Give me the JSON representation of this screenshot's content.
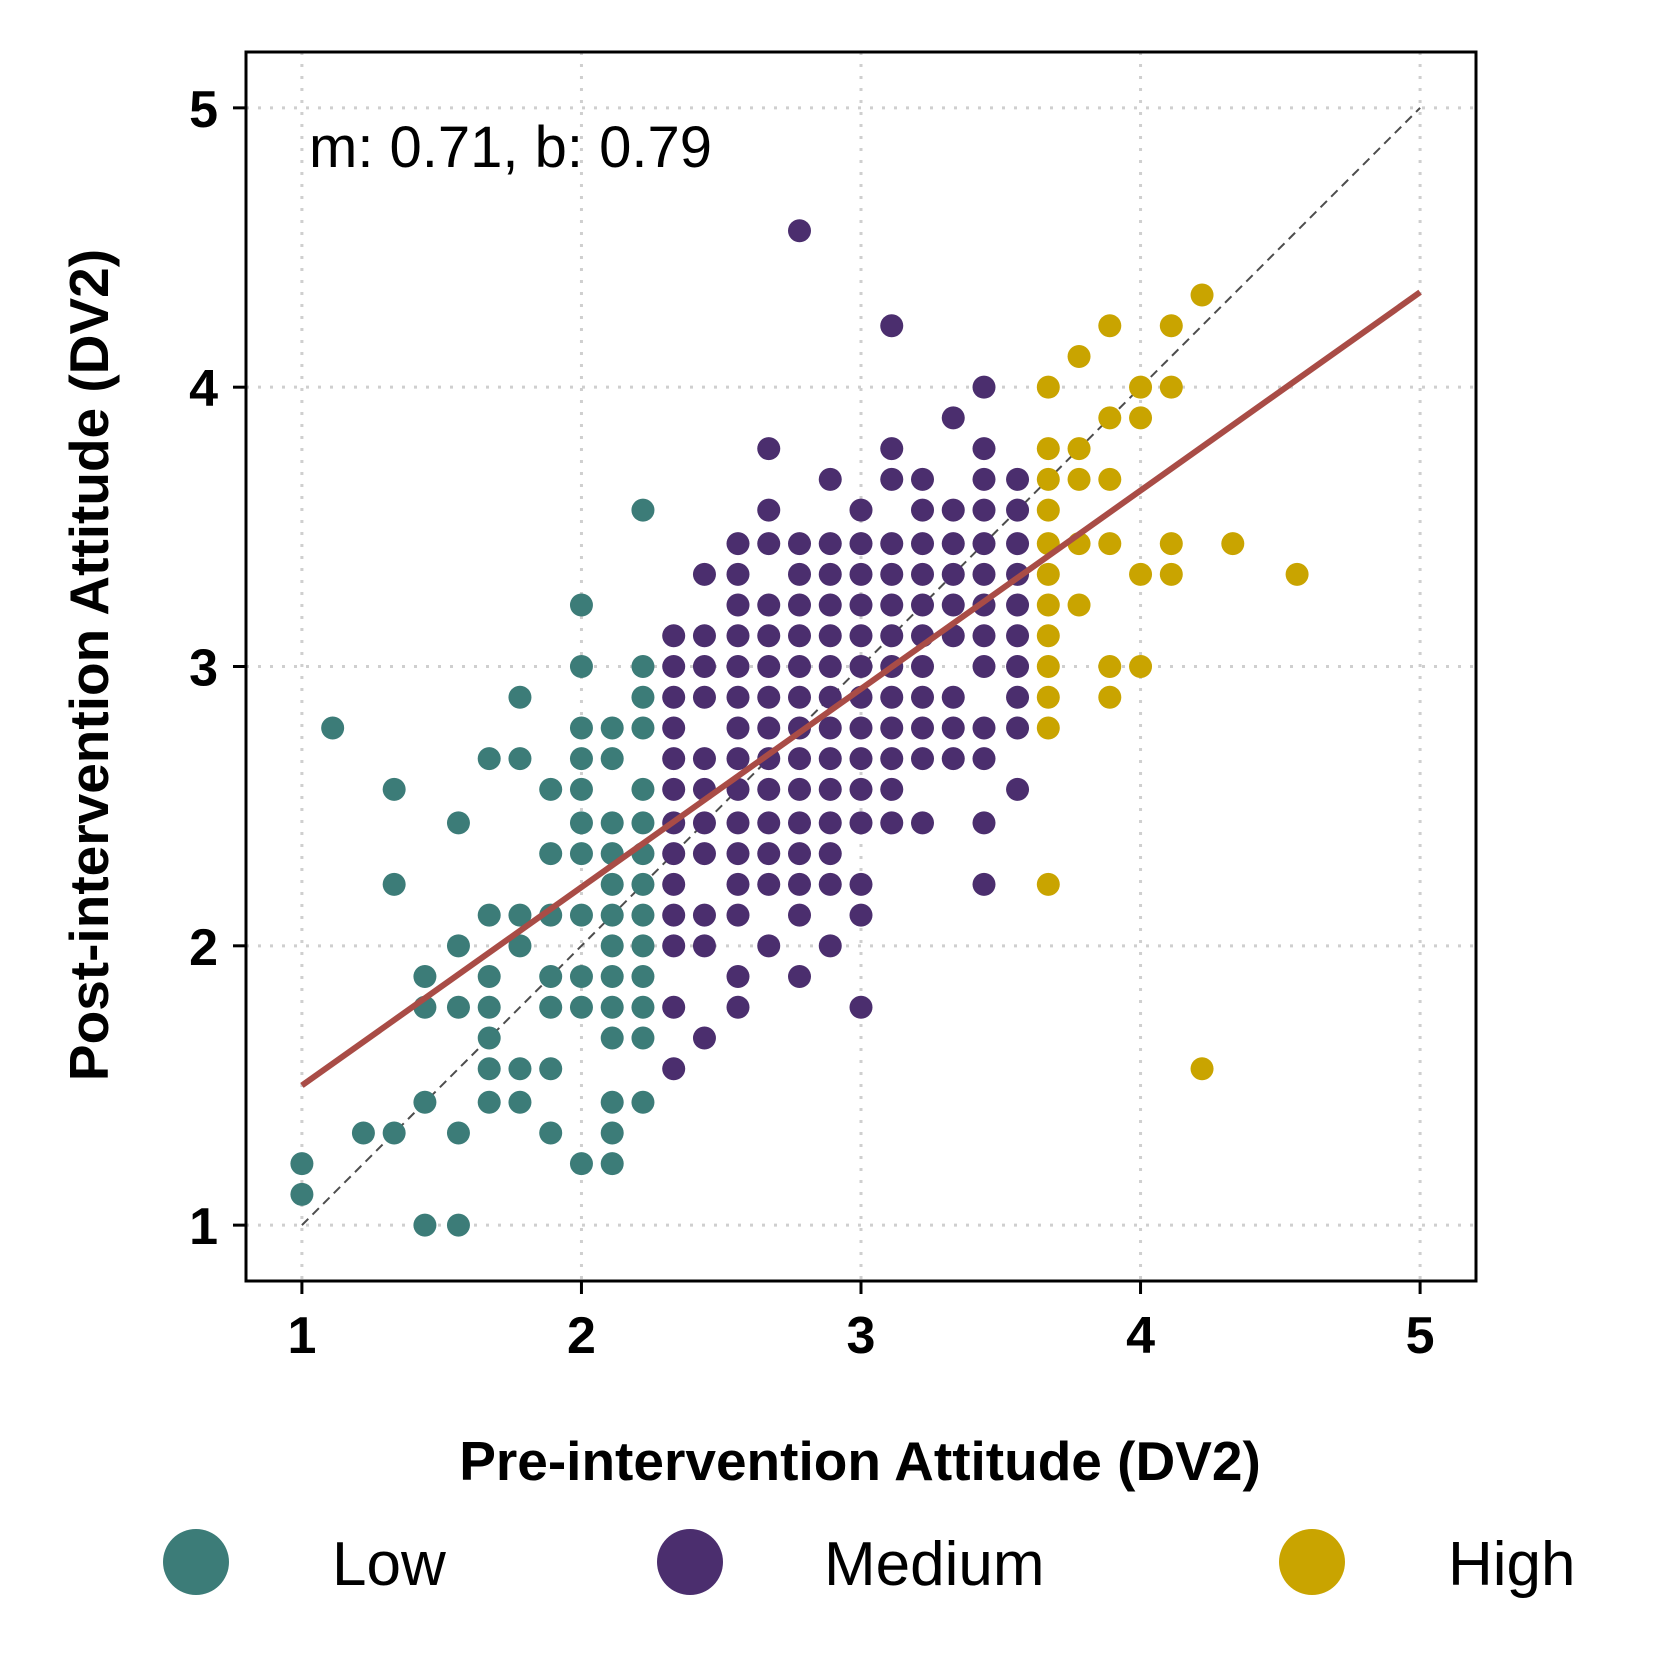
{
  "chart_data": {
    "type": "scatter",
    "title": "",
    "xlabel": "Pre-intervention Attitude (DV2)",
    "ylabel": "Post-intervention Attitude (DV2)",
    "xlim": [
      0.8,
      5.2
    ],
    "ylim": [
      0.8,
      5.2
    ],
    "xticks": [
      1,
      2,
      3,
      4,
      5
    ],
    "yticks": [
      1,
      2,
      3,
      4,
      5
    ],
    "grid": true,
    "annotation": "m: 0.71, b: 0.79",
    "fit_line": {
      "slope": 0.71,
      "intercept": 0.79,
      "x_range": [
        1,
        5
      ],
      "color": "#a94c46"
    },
    "identity_line": {
      "x_range": [
        1,
        5
      ],
      "color": "#4d4d4d"
    },
    "legend_position": "bottom",
    "series": [
      {
        "name": "Low",
        "color": "#3c7c78",
        "points": [
          [
            1.0,
            1.22
          ],
          [
            1.0,
            1.11
          ],
          [
            1.11,
            2.78
          ],
          [
            1.22,
            1.33
          ],
          [
            1.33,
            1.33
          ],
          [
            1.33,
            2.22
          ],
          [
            1.33,
            2.56
          ],
          [
            1.44,
            1.0
          ],
          [
            1.44,
            1.44
          ],
          [
            1.44,
            1.78
          ],
          [
            1.44,
            1.89
          ],
          [
            1.56,
            1.0
          ],
          [
            1.56,
            1.33
          ],
          [
            1.56,
            1.78
          ],
          [
            1.56,
            2.0
          ],
          [
            1.56,
            2.44
          ],
          [
            1.67,
            1.44
          ],
          [
            1.67,
            1.56
          ],
          [
            1.67,
            1.67
          ],
          [
            1.67,
            1.78
          ],
          [
            1.67,
            1.89
          ],
          [
            1.67,
            2.11
          ],
          [
            1.67,
            2.67
          ],
          [
            1.78,
            1.44
          ],
          [
            1.78,
            1.56
          ],
          [
            1.78,
            2.0
          ],
          [
            1.78,
            2.11
          ],
          [
            1.78,
            2.67
          ],
          [
            1.78,
            2.89
          ],
          [
            1.89,
            1.33
          ],
          [
            1.89,
            1.56
          ],
          [
            1.89,
            1.78
          ],
          [
            1.89,
            1.89
          ],
          [
            1.89,
            2.11
          ],
          [
            1.89,
            2.33
          ],
          [
            1.89,
            2.56
          ],
          [
            2.0,
            1.22
          ],
          [
            2.0,
            1.78
          ],
          [
            2.0,
            1.89
          ],
          [
            2.0,
            2.11
          ],
          [
            2.0,
            2.33
          ],
          [
            2.0,
            2.44
          ],
          [
            2.0,
            2.56
          ],
          [
            2.0,
            2.67
          ],
          [
            2.0,
            2.78
          ],
          [
            2.0,
            3.0
          ],
          [
            2.0,
            3.22
          ],
          [
            2.11,
            1.22
          ],
          [
            2.11,
            1.33
          ],
          [
            2.11,
            1.44
          ],
          [
            2.11,
            1.67
          ],
          [
            2.11,
            1.78
          ],
          [
            2.11,
            1.89
          ],
          [
            2.11,
            2.0
          ],
          [
            2.11,
            2.11
          ],
          [
            2.11,
            2.22
          ],
          [
            2.11,
            2.33
          ],
          [
            2.11,
            2.44
          ],
          [
            2.11,
            2.67
          ],
          [
            2.11,
            2.78
          ],
          [
            2.22,
            1.44
          ],
          [
            2.22,
            1.67
          ],
          [
            2.22,
            1.78
          ],
          [
            2.22,
            1.89
          ],
          [
            2.22,
            2.0
          ],
          [
            2.22,
            2.11
          ],
          [
            2.22,
            2.22
          ],
          [
            2.22,
            2.33
          ],
          [
            2.22,
            2.44
          ],
          [
            2.22,
            2.56
          ],
          [
            2.22,
            2.78
          ],
          [
            2.22,
            2.89
          ],
          [
            2.22,
            3.0
          ],
          [
            2.22,
            3.56
          ]
        ]
      },
      {
        "name": "Medium",
        "color": "#4b2e6e",
        "points": [
          [
            2.33,
            1.56
          ],
          [
            2.33,
            1.78
          ],
          [
            2.33,
            2.0
          ],
          [
            2.33,
            2.11
          ],
          [
            2.33,
            2.22
          ],
          [
            2.33,
            2.33
          ],
          [
            2.33,
            2.44
          ],
          [
            2.33,
            2.56
          ],
          [
            2.33,
            2.67
          ],
          [
            2.33,
            2.78
          ],
          [
            2.33,
            2.89
          ],
          [
            2.33,
            3.0
          ],
          [
            2.33,
            3.11
          ],
          [
            2.44,
            1.67
          ],
          [
            2.44,
            2.0
          ],
          [
            2.44,
            2.11
          ],
          [
            2.44,
            2.33
          ],
          [
            2.44,
            2.44
          ],
          [
            2.44,
            2.56
          ],
          [
            2.44,
            2.67
          ],
          [
            2.44,
            2.89
          ],
          [
            2.44,
            3.0
          ],
          [
            2.44,
            3.11
          ],
          [
            2.44,
            3.33
          ],
          [
            2.56,
            1.78
          ],
          [
            2.56,
            1.89
          ],
          [
            2.56,
            2.11
          ],
          [
            2.56,
            2.22
          ],
          [
            2.56,
            2.33
          ],
          [
            2.56,
            2.44
          ],
          [
            2.56,
            2.56
          ],
          [
            2.56,
            2.67
          ],
          [
            2.56,
            2.78
          ],
          [
            2.56,
            2.89
          ],
          [
            2.56,
            3.0
          ],
          [
            2.56,
            3.11
          ],
          [
            2.56,
            3.22
          ],
          [
            2.56,
            3.33
          ],
          [
            2.56,
            3.44
          ],
          [
            2.67,
            2.0
          ],
          [
            2.67,
            2.22
          ],
          [
            2.67,
            2.33
          ],
          [
            2.67,
            2.44
          ],
          [
            2.67,
            2.56
          ],
          [
            2.67,
            2.67
          ],
          [
            2.67,
            2.78
          ],
          [
            2.67,
            2.89
          ],
          [
            2.67,
            3.0
          ],
          [
            2.67,
            3.11
          ],
          [
            2.67,
            3.22
          ],
          [
            2.67,
            3.44
          ],
          [
            2.67,
            3.56
          ],
          [
            2.67,
            3.78
          ],
          [
            2.78,
            1.89
          ],
          [
            2.78,
            2.11
          ],
          [
            2.78,
            2.22
          ],
          [
            2.78,
            2.33
          ],
          [
            2.78,
            2.44
          ],
          [
            2.78,
            2.56
          ],
          [
            2.78,
            2.67
          ],
          [
            2.78,
            2.78
          ],
          [
            2.78,
            2.89
          ],
          [
            2.78,
            3.0
          ],
          [
            2.78,
            3.11
          ],
          [
            2.78,
            3.22
          ],
          [
            2.78,
            3.33
          ],
          [
            2.78,
            3.44
          ],
          [
            2.78,
            4.56
          ],
          [
            2.89,
            2.0
          ],
          [
            2.89,
            2.22
          ],
          [
            2.89,
            2.33
          ],
          [
            2.89,
            2.44
          ],
          [
            2.89,
            2.56
          ],
          [
            2.89,
            2.67
          ],
          [
            2.89,
            2.78
          ],
          [
            2.89,
            2.89
          ],
          [
            2.89,
            3.0
          ],
          [
            2.89,
            3.11
          ],
          [
            2.89,
            3.22
          ],
          [
            2.89,
            3.33
          ],
          [
            2.89,
            3.44
          ],
          [
            2.89,
            3.67
          ],
          [
            3.0,
            1.78
          ],
          [
            3.0,
            2.11
          ],
          [
            3.0,
            2.22
          ],
          [
            3.0,
            2.44
          ],
          [
            3.0,
            2.56
          ],
          [
            3.0,
            2.67
          ],
          [
            3.0,
            2.78
          ],
          [
            3.0,
            2.89
          ],
          [
            3.0,
            3.0
          ],
          [
            3.0,
            3.11
          ],
          [
            3.0,
            3.22
          ],
          [
            3.0,
            3.33
          ],
          [
            3.0,
            3.44
          ],
          [
            3.0,
            3.56
          ],
          [
            3.11,
            2.44
          ],
          [
            3.11,
            2.56
          ],
          [
            3.11,
            2.67
          ],
          [
            3.11,
            2.78
          ],
          [
            3.11,
            2.89
          ],
          [
            3.11,
            3.0
          ],
          [
            3.11,
            3.11
          ],
          [
            3.11,
            3.22
          ],
          [
            3.11,
            3.33
          ],
          [
            3.11,
            3.44
          ],
          [
            3.11,
            3.67
          ],
          [
            3.11,
            3.78
          ],
          [
            3.11,
            4.22
          ],
          [
            3.22,
            2.44
          ],
          [
            3.22,
            2.67
          ],
          [
            3.22,
            2.78
          ],
          [
            3.22,
            2.89
          ],
          [
            3.22,
            3.0
          ],
          [
            3.22,
            3.11
          ],
          [
            3.22,
            3.22
          ],
          [
            3.22,
            3.33
          ],
          [
            3.22,
            3.44
          ],
          [
            3.22,
            3.56
          ],
          [
            3.22,
            3.67
          ],
          [
            3.33,
            2.67
          ],
          [
            3.33,
            2.78
          ],
          [
            3.33,
            2.89
          ],
          [
            3.33,
            3.11
          ],
          [
            3.33,
            3.22
          ],
          [
            3.33,
            3.33
          ],
          [
            3.33,
            3.44
          ],
          [
            3.33,
            3.56
          ],
          [
            3.33,
            3.89
          ],
          [
            3.44,
            2.22
          ],
          [
            3.44,
            2.44
          ],
          [
            3.44,
            2.67
          ],
          [
            3.44,
            2.78
          ],
          [
            3.44,
            3.0
          ],
          [
            3.44,
            3.11
          ],
          [
            3.44,
            3.22
          ],
          [
            3.44,
            3.33
          ],
          [
            3.44,
            3.44
          ],
          [
            3.44,
            3.56
          ],
          [
            3.44,
            3.67
          ],
          [
            3.44,
            3.78
          ],
          [
            3.44,
            4.0
          ],
          [
            3.56,
            2.56
          ],
          [
            3.56,
            2.78
          ],
          [
            3.56,
            2.89
          ],
          [
            3.56,
            3.0
          ],
          [
            3.56,
            3.11
          ],
          [
            3.56,
            3.22
          ],
          [
            3.56,
            3.33
          ],
          [
            3.56,
            3.44
          ],
          [
            3.56,
            3.56
          ],
          [
            3.56,
            3.67
          ]
        ]
      },
      {
        "name": "High",
        "color": "#c9a400",
        "points": [
          [
            3.67,
            2.22
          ],
          [
            3.67,
            2.78
          ],
          [
            3.67,
            2.89
          ],
          [
            3.67,
            3.0
          ],
          [
            3.67,
            3.11
          ],
          [
            3.67,
            3.22
          ],
          [
            3.67,
            3.33
          ],
          [
            3.67,
            3.44
          ],
          [
            3.67,
            3.56
          ],
          [
            3.67,
            3.67
          ],
          [
            3.67,
            3.78
          ],
          [
            3.67,
            4.0
          ],
          [
            3.78,
            3.22
          ],
          [
            3.78,
            3.44
          ],
          [
            3.78,
            3.67
          ],
          [
            3.78,
            3.78
          ],
          [
            3.78,
            4.11
          ],
          [
            3.89,
            2.89
          ],
          [
            3.89,
            3.0
          ],
          [
            3.89,
            3.44
          ],
          [
            3.89,
            3.67
          ],
          [
            3.89,
            3.89
          ],
          [
            3.89,
            4.22
          ],
          [
            4.0,
            3.0
          ],
          [
            4.0,
            3.33
          ],
          [
            4.0,
            3.89
          ],
          [
            4.0,
            4.0
          ],
          [
            4.11,
            3.33
          ],
          [
            4.11,
            3.44
          ],
          [
            4.11,
            4.0
          ],
          [
            4.11,
            4.22
          ],
          [
            4.22,
            1.56
          ],
          [
            4.22,
            4.33
          ],
          [
            4.33,
            3.44
          ],
          [
            4.56,
            3.33
          ]
        ]
      }
    ]
  }
}
